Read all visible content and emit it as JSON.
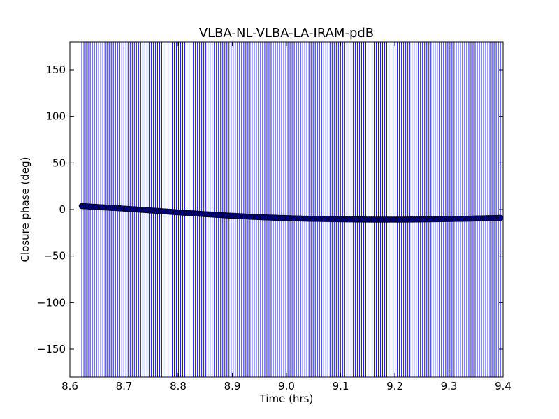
{
  "chart_data": {
    "type": "scatter",
    "title": "VLBA-NL-VLBA-LA-IRAM-pdB",
    "xlabel": "Time (hrs)",
    "ylabel": "Closure phase (deg)",
    "xlim": [
      8.6,
      9.4
    ],
    "ylim": [
      -180,
      180
    ],
    "xticks": [
      8.6,
      8.7,
      8.8,
      8.9,
      9.0,
      9.1,
      9.2,
      9.3,
      9.4
    ],
    "xtick_labels": [
      "8.6",
      "8.7",
      "8.8",
      "8.9",
      "9.0",
      "9.1",
      "9.2",
      "9.3",
      "9.4"
    ],
    "yticks": [
      -150,
      -100,
      -50,
      0,
      50,
      100,
      150
    ],
    "ytick_labels": [
      "−150",
      "−100",
      "−50",
      "0",
      "50",
      "100",
      "150"
    ],
    "grid": false,
    "error_bars": "extend beyond full y range",
    "colors": {
      "marker": "#00008b",
      "errorbar": "#0000ff"
    },
    "series": [
      {
        "values": [
          [
            8.622,
            3.8
          ],
          [
            8.63,
            3.5
          ],
          [
            8.64,
            3.1
          ],
          [
            8.65,
            2.8
          ],
          [
            8.66,
            2.4
          ],
          [
            8.67,
            2.1
          ],
          [
            8.68,
            1.7
          ],
          [
            8.69,
            1.4
          ],
          [
            8.7,
            1.0
          ],
          [
            8.71,
            0.6
          ],
          [
            8.72,
            0.2
          ],
          [
            8.73,
            -0.2
          ],
          [
            8.74,
            -0.6
          ],
          [
            8.75,
            -1.0
          ],
          [
            8.76,
            -1.4
          ],
          [
            8.77,
            -1.8
          ],
          [
            8.78,
            -2.2
          ],
          [
            8.79,
            -2.6
          ],
          [
            8.8,
            -3.0
          ],
          [
            8.81,
            -3.4
          ],
          [
            8.82,
            -3.8
          ],
          [
            8.83,
            -4.2
          ],
          [
            8.84,
            -4.6
          ],
          [
            8.85,
            -5.0
          ],
          [
            8.86,
            -5.3
          ],
          [
            8.87,
            -5.7
          ],
          [
            8.88,
            -6.0
          ],
          [
            8.89,
            -6.4
          ],
          [
            8.9,
            -6.7
          ],
          [
            8.91,
            -7.0
          ],
          [
            8.92,
            -7.3
          ],
          [
            8.93,
            -7.6
          ],
          [
            8.94,
            -7.9
          ],
          [
            8.95,
            -8.1
          ],
          [
            8.96,
            -8.4
          ],
          [
            8.97,
            -8.6
          ],
          [
            8.98,
            -8.8
          ],
          [
            8.99,
            -9.0
          ],
          [
            9.0,
            -9.2
          ],
          [
            9.01,
            -9.4
          ],
          [
            9.02,
            -9.6
          ],
          [
            9.03,
            -9.7
          ],
          [
            9.04,
            -9.9
          ],
          [
            9.05,
            -10.0
          ],
          [
            9.06,
            -10.1
          ],
          [
            9.07,
            -10.2
          ],
          [
            9.08,
            -10.3
          ],
          [
            9.09,
            -10.4
          ],
          [
            9.1,
            -10.5
          ],
          [
            9.11,
            -10.6
          ],
          [
            9.12,
            -10.6
          ],
          [
            9.13,
            -10.7
          ],
          [
            9.14,
            -10.7
          ],
          [
            9.15,
            -10.8
          ],
          [
            9.16,
            -10.8
          ],
          [
            9.17,
            -10.8
          ],
          [
            9.18,
            -10.8
          ],
          [
            9.19,
            -10.8
          ],
          [
            9.2,
            -10.8
          ],
          [
            9.21,
            -10.8
          ],
          [
            9.22,
            -10.8
          ],
          [
            9.23,
            -10.7
          ],
          [
            9.24,
            -10.7
          ],
          [
            9.25,
            -10.6
          ],
          [
            9.26,
            -10.6
          ],
          [
            9.27,
            -10.5
          ],
          [
            9.28,
            -10.4
          ],
          [
            9.29,
            -10.3
          ],
          [
            9.3,
            -10.2
          ],
          [
            9.31,
            -10.1
          ],
          [
            9.32,
            -10.0
          ],
          [
            9.33,
            -9.9
          ],
          [
            9.34,
            -9.8
          ],
          [
            9.35,
            -9.6
          ],
          [
            9.36,
            -9.5
          ],
          [
            9.37,
            -9.3
          ],
          [
            9.38,
            -9.2
          ],
          [
            9.39,
            -9.0
          ],
          [
            9.395,
            -8.9
          ]
        ]
      }
    ]
  }
}
